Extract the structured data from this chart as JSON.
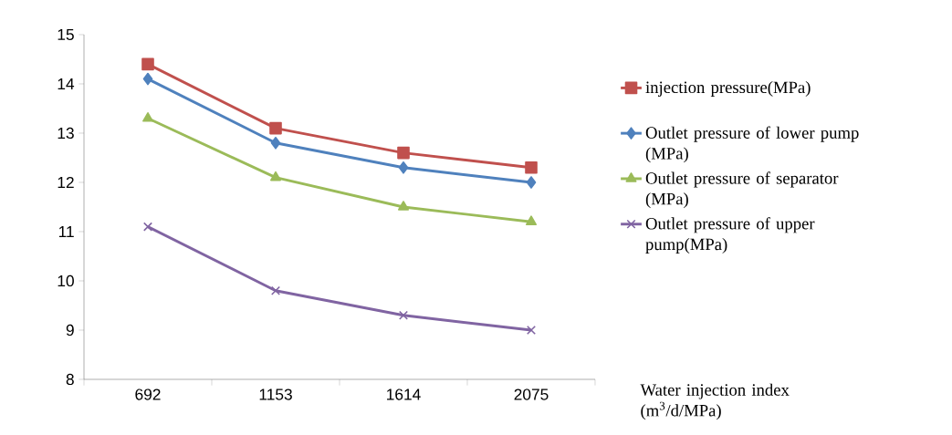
{
  "chart_data": {
    "type": "line",
    "xlabel": "Water injection index (m$^{3}$/d/MPa)",
    "categories": [
      "692",
      "1153",
      "1614",
      "2075"
    ],
    "series": [
      {
        "name": "injection pressure(MPa)",
        "color": "#c0504d",
        "marker": "square",
        "values": [
          14.4,
          13.1,
          12.6,
          12.3
        ]
      },
      {
        "name": "Outlet pressure of lower pump (MPa)",
        "color": "#4f81bd",
        "marker": "diamond",
        "values": [
          14.1,
          12.8,
          12.3,
          12.0
        ]
      },
      {
        "name": "Outlet pressure of separator (MPa)",
        "color": "#9bbb59",
        "marker": "triangle",
        "values": [
          13.3,
          12.1,
          11.5,
          11.2
        ]
      },
      {
        "name": "Outlet pressure of upper pump(MPa)",
        "color": "#8064a2",
        "marker": "cross",
        "values": [
          11.1,
          9.8,
          9.3,
          9.0
        ]
      }
    ],
    "ylim": [
      8,
      15
    ],
    "yticks": [
      8,
      9,
      10,
      11,
      12,
      13,
      14,
      15
    ],
    "grid": false,
    "legend": "right",
    "line_style": "solid"
  }
}
